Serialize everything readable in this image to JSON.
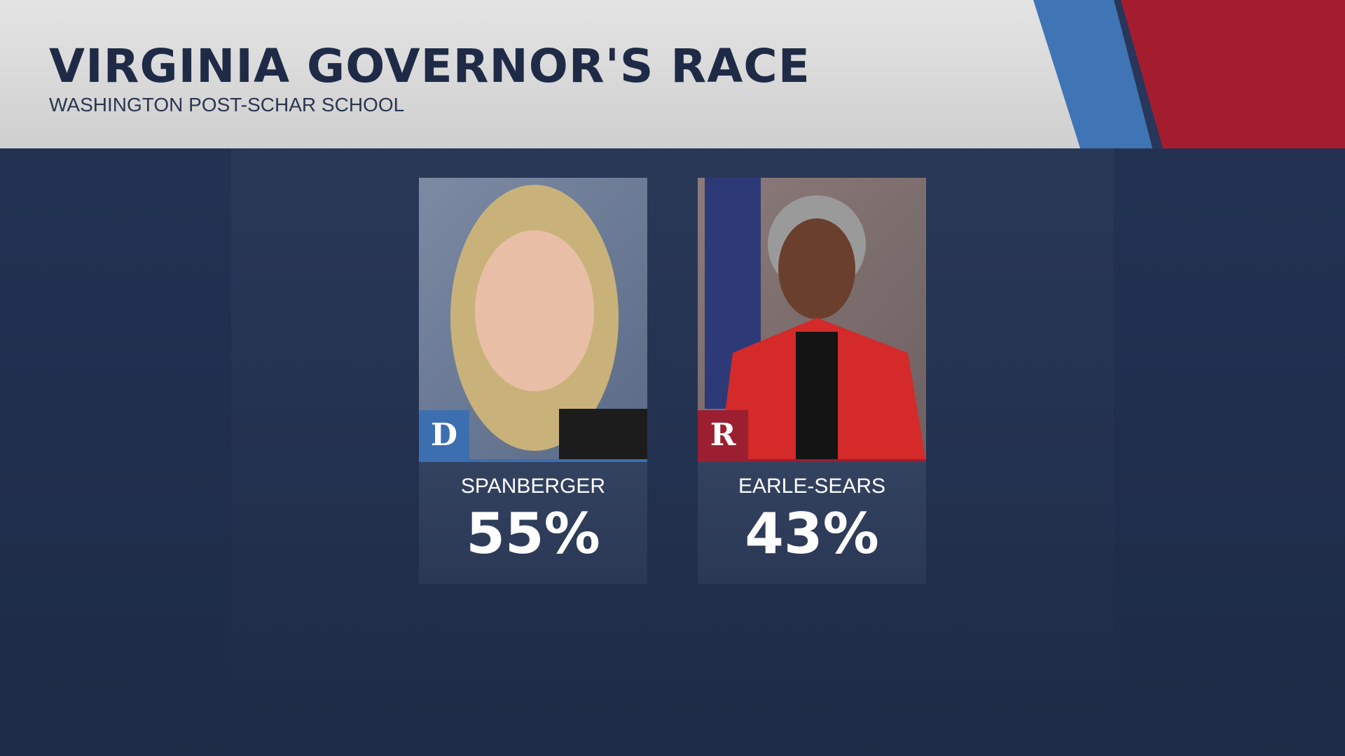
{
  "header": {
    "title": "VIRGINIA GOVERNOR'S RACE",
    "subtitle": "WASHINGTON POST-SCHAR SCHOOL"
  },
  "candidates": [
    {
      "party": "D",
      "name": "SPANBERGER",
      "result": "55%"
    },
    {
      "party": "R",
      "name": "EARLE-SEARS",
      "result": "43%"
    }
  ]
}
